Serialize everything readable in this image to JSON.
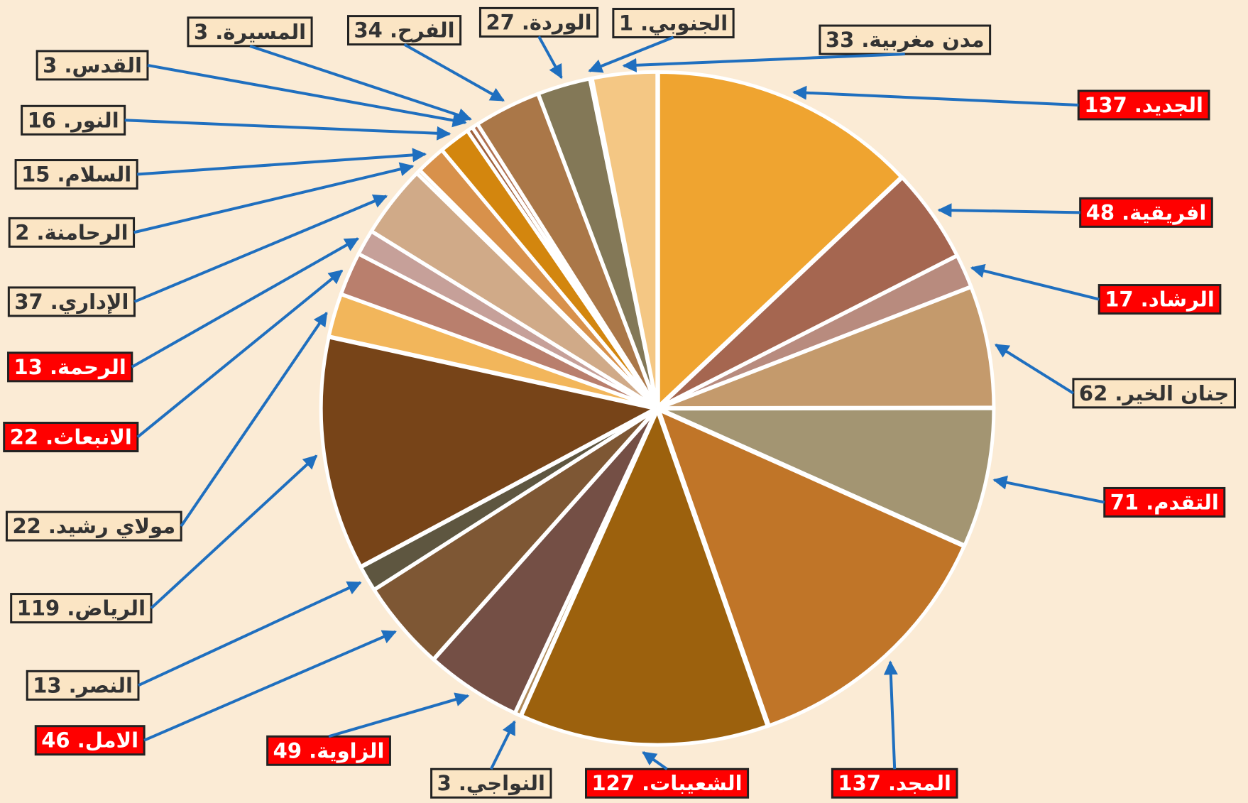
{
  "chart_data": {
    "type": "pie",
    "value_labels": [
      "الجديد. 137",
      "افريقية. 48",
      "الرشاد. 17",
      "جنان الخير. 62",
      "التقدم. 71",
      "المجد. 137",
      "الشعيبات. 127",
      "النواجي. 3",
      "الزاوية. 49",
      "الامل. 46",
      "النصر. 13",
      "الرياض. 119",
      "مولاي رشيد. 22",
      "الانبعاث. 22",
      "الرحمة. 13",
      "الإداري. 37",
      "الرحامنة. 2",
      "السلام. 15",
      "النور. 16",
      "القدس. 3",
      "المسيرة. 3",
      "الفرح. 34",
      "الوردة. 27",
      "الجنوبي. 1",
      "مدن مغربية. 33"
    ],
    "values": [
      137,
      48,
      17,
      62,
      71,
      137,
      127,
      3,
      49,
      46,
      13,
      119,
      22,
      22,
      13,
      37,
      2,
      15,
      16,
      3,
      3,
      34,
      27,
      1,
      33
    ],
    "colors": [
      "#EFA430",
      "#A56650",
      "#B88B7E",
      "#C49A6C",
      "#A39572",
      "#C07528",
      "#9C610D",
      "#B08A5A",
      "#744F45",
      "#7E5734",
      "#5E5640",
      "#774418",
      "#F2B65B",
      "#B97F6D",
      "#C6A099",
      "#D0AA88",
      "#E8C090",
      "#D8914B",
      "#D3860E",
      "#A0603A",
      "#B07050",
      "#AA7748",
      "#837857",
      "#B88040",
      "#F4C784"
    ],
    "label_backgrounds": [
      "#FF0000",
      "#FF0000",
      "#FF0000",
      "#FBE5C4",
      "#FF0000",
      "#FF0000",
      "#FF0000",
      "#FBE5C4",
      "#FF0000",
      "#FF0000",
      "#FBE5C4",
      "#FBE5C4",
      "#FBE5C4",
      "#FF0000",
      "#FF0000",
      "#FBE5C4",
      "#FBE5C4",
      "#FBE5C4",
      "#FBE5C4",
      "#FBE5C4",
      "#FBE5C4",
      "#FBE5C4",
      "#FBE5C4",
      "#FBE5C4",
      "#FBE5C4"
    ]
  }
}
